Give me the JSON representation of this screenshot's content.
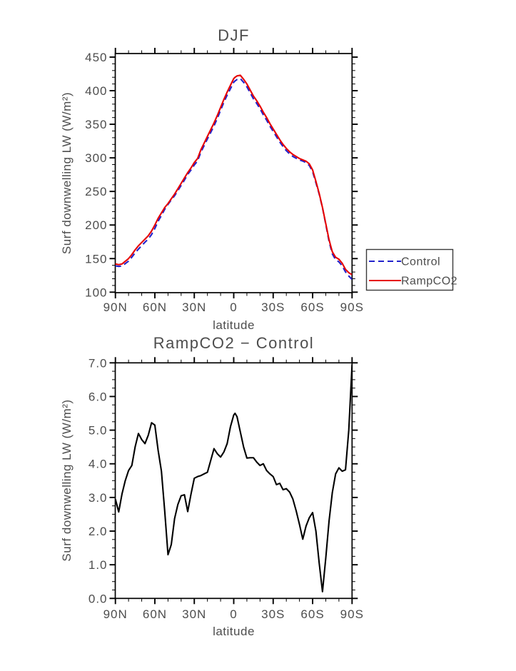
{
  "page": {
    "background": "#ffffff",
    "text_color": "#4d4d4d",
    "frame_color": "#000000"
  },
  "chart_data": [
    {
      "type": "line",
      "title": "DJF",
      "xlabel": "latitude",
      "ylabel": "Surf downwelling LW (W/m²)",
      "grid": false,
      "x_axis": {
        "tick_lats": [
          90,
          60,
          30,
          0,
          -30,
          -60,
          -90
        ],
        "tick_labels": [
          "90N",
          "60N",
          "30N",
          "0",
          "30S",
          "60S",
          "90S"
        ],
        "minor_step_deg": 10,
        "range_lats": [
          90,
          -90
        ]
      },
      "y_axis": {
        "ticks": [
          100,
          150,
          200,
          250,
          300,
          350,
          400,
          450
        ],
        "tick_labels": [
          "100",
          "150",
          "200",
          "250",
          "300",
          "350",
          "400",
          "450"
        ],
        "minor_step": 10,
        "range": [
          100,
          450
        ]
      },
      "legend": {
        "position": "outside-right-bottom",
        "entries": [
          {
            "label": "Control",
            "color": "#2222cc",
            "line_style": "dashed"
          },
          {
            "label": "RampCO2",
            "color": "#e60000",
            "line_style": "solid"
          }
        ]
      },
      "series": [
        {
          "name": "Control",
          "color": "#2222cc",
          "line_style": "dashed",
          "lat": [
            90,
            87.5,
            85,
            82.5,
            80,
            77.5,
            75,
            72.5,
            70,
            67.5,
            65,
            62.5,
            60,
            57.5,
            55,
            52.5,
            50,
            47.5,
            45,
            42.5,
            40,
            37.5,
            35,
            32.5,
            30,
            27.5,
            25,
            22.5,
            20,
            17.5,
            15,
            12.5,
            10,
            7.5,
            5,
            2.5,
            0,
            -1,
            -2.5,
            -5,
            -7.5,
            -10,
            -12.5,
            -15,
            -17.5,
            -20,
            -22.5,
            -25,
            -27.5,
            -30,
            -32.5,
            -35,
            -37.5,
            -40,
            -42.5,
            -45,
            -47.5,
            -50,
            -52.5,
            -55,
            -57.5,
            -60,
            -62.5,
            -65,
            -67.5,
            -70,
            -72.5,
            -75,
            -77.5,
            -80,
            -82.5,
            -85,
            -87.5,
            -90
          ],
          "values": [
            139.1,
            138.4,
            138.9,
            142.5,
            146.2,
            152.1,
            158.5,
            164.1,
            169.3,
            174.4,
            179.2,
            185.8,
            194.9,
            205.6,
            214.2,
            223.4,
            230.7,
            237.4,
            243.6,
            251.2,
            259.0,
            266.9,
            275.4,
            281.9,
            289.4,
            295.4,
            308.4,
            318.3,
            328.3,
            337.9,
            347.6,
            358.7,
            370.8,
            382.7,
            393.4,
            402.9,
            412.6,
            414.5,
            416.6,
            418.1,
            412.5,
            405.8,
            396.8,
            387.8,
            381.0,
            373.1,
            364.0,
            356.2,
            347.3,
            339.4,
            331.6,
            323.6,
            316.8,
            310.7,
            305.8,
            302.1,
            299.4,
            296.8,
            295.2,
            292.9,
            288.6,
            279.5,
            263.0,
            246.0,
            225.8,
            200.8,
            175.7,
            156.9,
            148.3,
            145.1,
            139.2,
            130.2,
            124.0,
            119.1
          ]
        },
        {
          "name": "RampCO2",
          "color": "#e60000",
          "line_style": "solid",
          "lat": [
            90,
            87.5,
            85,
            82.5,
            80,
            77.5,
            75,
            72.5,
            70,
            67.5,
            65,
            62.5,
            60,
            57.5,
            55,
            52.5,
            50,
            47.5,
            45,
            42.5,
            40,
            37.5,
            35,
            32.5,
            30,
            27.5,
            25,
            22.5,
            20,
            17.5,
            15,
            12.5,
            10,
            7.5,
            5,
            2.5,
            0,
            -1,
            -2.5,
            -5,
            -7.5,
            -10,
            -12.5,
            -15,
            -17.5,
            -20,
            -22.5,
            -25,
            -27.5,
            -30,
            -32.5,
            -35,
            -37.5,
            -40,
            -42.5,
            -45,
            -47.5,
            -50,
            -52.5,
            -55,
            -57.5,
            -60,
            -62.5,
            -65,
            -67.5,
            -70,
            -72.5,
            -75,
            -77.5,
            -80,
            -82.5,
            -85,
            -87.5,
            -90
          ],
          "values": [
            142,
            141,
            142,
            146,
            150,
            156,
            163,
            169,
            174,
            179,
            184,
            191,
            200,
            210,
            218,
            226,
            232,
            239,
            246,
            254,
            262,
            270,
            278,
            285,
            293,
            299,
            312,
            322,
            332,
            342,
            352,
            363,
            375,
            387,
            398,
            408,
            418,
            420,
            422,
            423,
            417,
            410,
            401,
            392,
            385,
            377,
            368,
            360,
            351,
            343,
            335,
            327,
            320,
            314,
            309,
            305,
            302,
            299,
            297,
            295,
            291,
            282,
            265,
            247,
            226,
            202,
            178,
            160,
            152,
            149,
            143,
            134,
            129,
            126
          ]
        }
      ]
    },
    {
      "type": "line",
      "title": "RampCO2 − Control",
      "xlabel": "latitude",
      "ylabel": "Surf downwelling LW (W/m²)",
      "grid": false,
      "x_axis": {
        "tick_lats": [
          90,
          60,
          30,
          0,
          -30,
          -60,
          -90
        ],
        "tick_labels": [
          "90N",
          "60N",
          "30N",
          "0",
          "30S",
          "60S",
          "90S"
        ],
        "minor_step_deg": 10,
        "range_lats": [
          90,
          -90
        ]
      },
      "y_axis": {
        "ticks": [
          0,
          1,
          2,
          3,
          4,
          5,
          6,
          7
        ],
        "tick_labels": [
          "0.0",
          "1.0",
          "2.0",
          "3.0",
          "4.0",
          "5.0",
          "6.0",
          "7.0"
        ],
        "minor_step": 0.25,
        "range": [
          0,
          7
        ]
      },
      "series": [
        {
          "name": "RampCO2 − Control",
          "color": "#000000",
          "line_style": "solid",
          "lat": [
            90,
            87.5,
            85,
            82.5,
            80,
            77.5,
            75,
            72.5,
            70,
            67.5,
            65,
            62.5,
            60,
            57.5,
            55,
            52.5,
            50,
            47.5,
            45,
            42.5,
            40,
            37.5,
            35,
            32.5,
            30,
            27.5,
            25,
            22.5,
            20,
            17.5,
            15,
            12.5,
            10,
            7.5,
            5,
            2.5,
            0,
            -1,
            -2.5,
            -5,
            -7.5,
            -10,
            -12.5,
            -15,
            -17.5,
            -20,
            -22.5,
            -25,
            -27.5,
            -30,
            -32.5,
            -35,
            -37.5,
            -40,
            -42.5,
            -45,
            -47.5,
            -50,
            -52.5,
            -55,
            -57.5,
            -60,
            -62.5,
            -65,
            -67.5,
            -70,
            -72.5,
            -75,
            -77.5,
            -80,
            -82.5,
            -85,
            -87.5,
            -90
          ],
          "values": [
            2.95,
            2.57,
            3.1,
            3.5,
            3.8,
            3.95,
            4.5,
            4.9,
            4.72,
            4.6,
            4.85,
            5.22,
            5.15,
            4.4,
            3.78,
            2.6,
            1.3,
            1.6,
            2.37,
            2.79,
            3.05,
            3.08,
            2.58,
            3.1,
            3.57,
            3.62,
            3.65,
            3.7,
            3.75,
            4.1,
            4.45,
            4.3,
            4.2,
            4.35,
            4.6,
            5.1,
            5.45,
            5.5,
            5.4,
            4.95,
            4.5,
            4.17,
            4.18,
            4.18,
            4.05,
            3.95,
            4.0,
            3.8,
            3.7,
            3.62,
            3.38,
            3.42,
            3.23,
            3.26,
            3.16,
            2.95,
            2.6,
            2.2,
            1.76,
            2.15,
            2.4,
            2.55,
            2.0,
            1.05,
            0.2,
            1.2,
            2.3,
            3.15,
            3.7,
            3.88,
            3.78,
            3.82,
            5.0,
            6.95
          ]
        }
      ]
    }
  ]
}
